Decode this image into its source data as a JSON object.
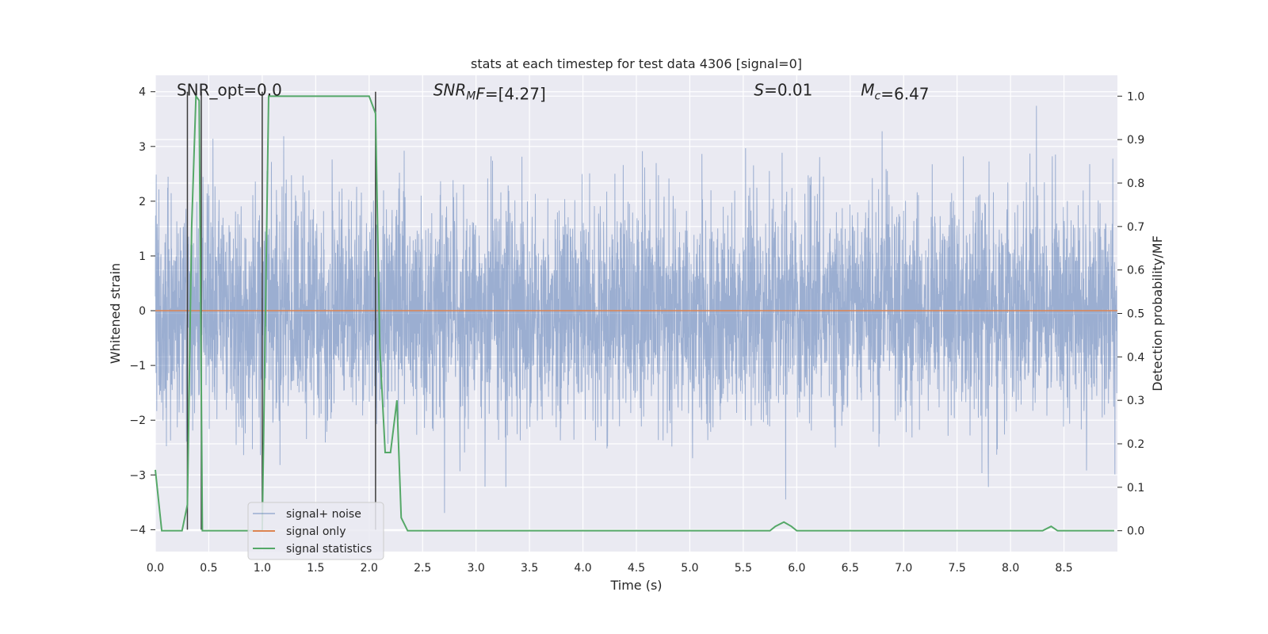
{
  "chart_data": {
    "type": "line",
    "title": "stats at each timestep for test data 4306 [signal=0]",
    "xlabel": "Time (s)",
    "ylabel": "Whitened strain",
    "y2label": "Detection probability/MF",
    "xlim": [
      0,
      9.0
    ],
    "ylim": [
      -4.4,
      4.3
    ],
    "y2lim": [
      -0.048,
      1.048
    ],
    "xticks": [
      0.0,
      0.5,
      1.0,
      1.5,
      2.0,
      2.5,
      3.0,
      3.5,
      4.0,
      4.5,
      5.0,
      5.5,
      6.0,
      6.5,
      7.0,
      7.5,
      8.0,
      8.5
    ],
    "xtick_labels": [
      "0.0",
      "0.5",
      "1.0",
      "1.5",
      "2.0",
      "2.5",
      "3.0",
      "3.5",
      "4.0",
      "4.5",
      "5.0",
      "5.5",
      "6.0",
      "6.5",
      "7.0",
      "7.5",
      "8.0",
      "8.5"
    ],
    "yticks": [
      -4,
      -3,
      -2,
      -1,
      0,
      1,
      2,
      3,
      4
    ],
    "ytick_labels": [
      "−4",
      "−3",
      "−2",
      "−1",
      "0",
      "1",
      "2",
      "3",
      "4"
    ],
    "y2ticks": [
      0.0,
      0.1,
      0.2,
      0.3,
      0.4,
      0.5,
      0.6,
      0.7,
      0.8,
      0.9,
      1.0
    ],
    "y2tick_labels": [
      "0.0",
      "0.1",
      "0.2",
      "0.3",
      "0.4",
      "0.5",
      "0.6",
      "0.7",
      "0.8",
      "0.9",
      "1.0"
    ],
    "grid": true,
    "legend_position": "lower-left",
    "annotations": [
      {
        "parts": [
          {
            "text": "SNR_opt=0.0",
            "style": "normal"
          }
        ],
        "x": 0.2,
        "y": 4.0
      },
      {
        "parts": [
          {
            "text": "SNR",
            "style": "italic"
          },
          {
            "text": "M",
            "style": "italic-sub"
          },
          {
            "text": "F",
            "style": "italic"
          },
          {
            "text": "=[4.27]",
            "style": "normal"
          }
        ],
        "x": 2.6,
        "y": 4.0
      },
      {
        "parts": [
          {
            "text": "S",
            "style": "italic"
          },
          {
            "text": "=0.01",
            "style": "normal"
          }
        ],
        "x": 5.6,
        "y": 4.0
      },
      {
        "parts": [
          {
            "text": "M",
            "style": "italic"
          },
          {
            "text": "c",
            "style": "italic-sub"
          },
          {
            "text": "=6.47",
            "style": "normal"
          }
        ],
        "x": 6.6,
        "y": 4.0
      }
    ],
    "vlines": [
      {
        "x": 0.3,
        "y": [
          -4.0,
          4.0
        ]
      },
      {
        "x": 0.43,
        "y": [
          -4.0,
          4.0
        ]
      },
      {
        "x": 1.0,
        "y": [
          -4.0,
          4.0
        ]
      },
      {
        "x": 2.06,
        "y": [
          -4.0,
          4.0
        ]
      }
    ],
    "series": [
      {
        "name": "signal+ noise",
        "color": "#4c72b0",
        "opacity": 0.5,
        "axis": "left",
        "kind": "noise",
        "sampling_rate": 512,
        "amplitude_sd": 1.0
      },
      {
        "name": "signal only",
        "color": "#dd8452",
        "axis": "left",
        "x": [
          0,
          9.0
        ],
        "y": [
          0,
          0
        ]
      },
      {
        "name": "signal statistics",
        "color": "#55a868",
        "axis": "right",
        "x": [
          0.0,
          0.06,
          0.1,
          0.25,
          0.3,
          0.34,
          0.38,
          0.41,
          0.44,
          0.47,
          0.52,
          1.0,
          1.06,
          1.1,
          2.0,
          2.06,
          2.1,
          2.15,
          2.2,
          2.26,
          2.3,
          2.36,
          2.4,
          5.75,
          5.8,
          5.88,
          5.95,
          6.0,
          8.3,
          8.38,
          8.44,
          8.5,
          8.97
        ],
        "y": [
          0.14,
          0.0,
          0.0,
          0.0,
          0.06,
          0.7,
          1.0,
          0.99,
          0.0,
          0.0,
          0.0,
          0.0,
          1.0,
          1.0,
          1.0,
          0.96,
          0.42,
          0.18,
          0.18,
          0.3,
          0.03,
          0.0,
          0.0,
          0.0,
          0.01,
          0.02,
          0.01,
          0.0,
          0.0,
          0.01,
          0.0,
          0.0,
          0.0
        ]
      }
    ]
  },
  "colors": {
    "plot_background": "#eaeaf2",
    "grid": "#ffffff",
    "vline": "#3c3c3c",
    "text": "#262626"
  }
}
